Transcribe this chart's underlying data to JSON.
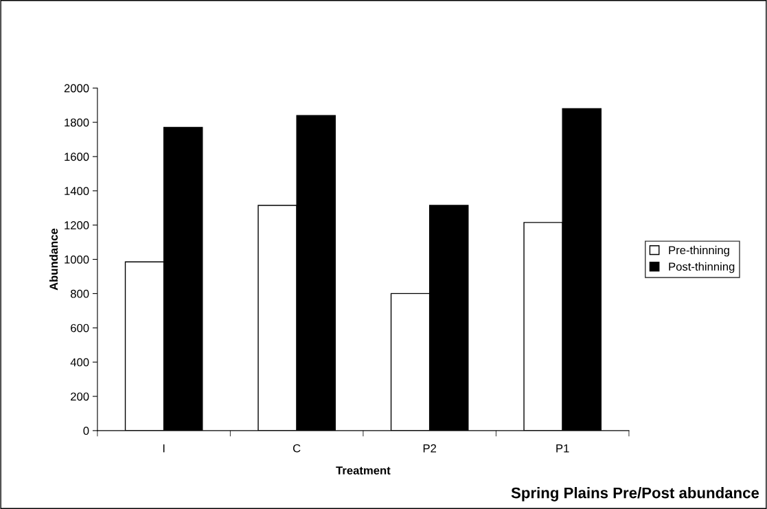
{
  "chart_data": {
    "type": "bar",
    "title": "Spring Plains Pre/Post abundance",
    "xlabel": "Treatment",
    "ylabel": "Abundance",
    "categories": [
      "I",
      "C",
      "P2",
      "P1"
    ],
    "series": [
      {
        "name": "Pre-thinning",
        "color": "#ffffff",
        "values": [
          985,
          1315,
          800,
          1215
        ]
      },
      {
        "name": "Post-thinning",
        "color": "#000000",
        "values": [
          1770,
          1840,
          1315,
          1880
        ]
      }
    ],
    "ylim": [
      0,
      2000
    ],
    "yticks": [
      0,
      200,
      400,
      600,
      800,
      1000,
      1200,
      1400,
      1600,
      1800,
      2000
    ],
    "grid": false,
    "legend": "right"
  }
}
